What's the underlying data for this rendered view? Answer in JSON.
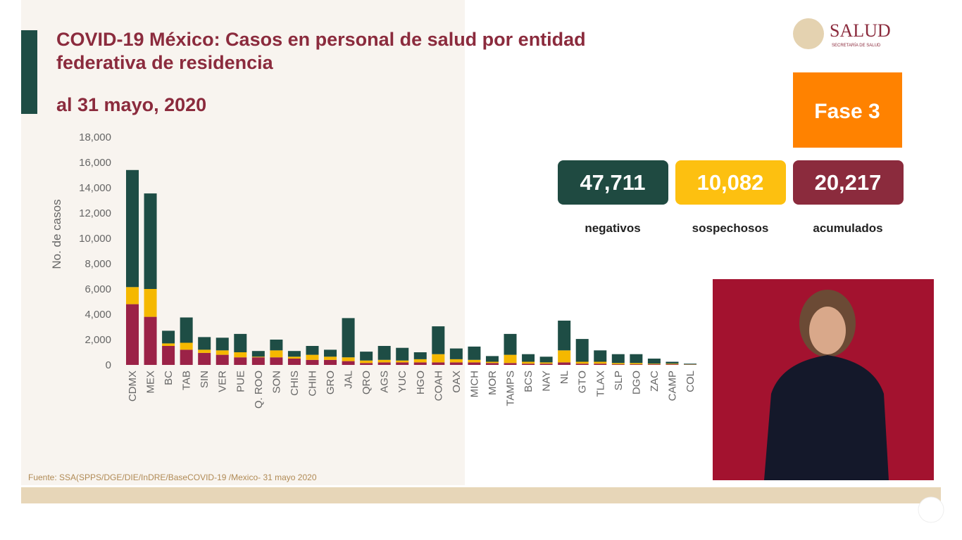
{
  "chart_data": {
    "type": "stacked-bar",
    "title": "COVID-19 México: Casos en personal de salud por entidad federativa de residencia",
    "subtitle": "al 31 mayo, 2020",
    "y_label": "No. de casos",
    "categories": [
      "CDMX",
      "MEX",
      "BC",
      "TAB",
      "SIN",
      "VER",
      "PUE",
      "Q. ROO",
      "SON",
      "CHIS",
      "CHIH",
      "GRO",
      "JAL",
      "QRO",
      "AGS",
      "YUC",
      "HGO",
      "COAH",
      "OAX",
      "MICH",
      "MOR",
      "TAMPS",
      "BCS",
      "NAY",
      "NL",
      "GTO",
      "TLAX",
      "SLP",
      "DGO",
      "ZAC",
      "CAMP",
      "COL"
    ],
    "series": [
      {
        "color": "#9b2247",
        "values": [
          4800,
          3800,
          1500,
          1200,
          950,
          800,
          600,
          600,
          600,
          500,
          400,
          400,
          300,
          150,
          200,
          200,
          200,
          200,
          200,
          200,
          150,
          150,
          100,
          100,
          200,
          100,
          100,
          50,
          50,
          50,
          50,
          20
        ]
      },
      {
        "color": "#f5b800",
        "values": [
          1350,
          2200,
          200,
          550,
          250,
          350,
          400,
          50,
          550,
          150,
          400,
          250,
          300,
          200,
          200,
          150,
          250,
          650,
          250,
          200,
          100,
          650,
          150,
          100,
          950,
          150,
          150,
          100,
          100,
          50,
          50,
          20
        ]
      },
      {
        "color": "#1e4d45",
        "values": [
          9250,
          7550,
          1000,
          2000,
          1000,
          1000,
          1450,
          450,
          850,
          450,
          700,
          550,
          3100,
          700,
          1100,
          1000,
          550,
          2200,
          850,
          1050,
          450,
          1650,
          600,
          450,
          2350,
          1800,
          900,
          700,
          700,
          400,
          150,
          60
        ]
      }
    ],
    "ylim": [
      0,
      18000
    ],
    "yticks": [
      0,
      {
        "value": 2000,
        "label": "2,000"
      },
      {
        "value": 4000,
        "label": "4,000"
      },
      {
        "value": 6000,
        "label": "6,000"
      },
      {
        "value": 8000,
        "label": "8,000"
      },
      {
        "value": 10000,
        "label": "10,000"
      },
      {
        "value": 12000,
        "label": "12,000"
      },
      {
        "value": 14000,
        "label": "14,000"
      },
      {
        "value": 16000,
        "label": "16,000"
      },
      {
        "value": 18000,
        "label": "18,000"
      }
    ],
    "source": "Fuente: SSA(SPPS/DGE/DIE/InDRE/BaseCOVID-19 /Mexico- 31 mayo 2020"
  },
  "brand": {
    "name": "SALUD",
    "subname": "SECRETARÍA DE SALUD"
  },
  "phase": "Fase 3",
  "summary": [
    {
      "value": "47,711",
      "label": "negativos",
      "color": "#1f4a41"
    },
    {
      "value": "10,082",
      "label": "sospechosos",
      "color": "#fdc010"
    },
    {
      "value": "20,217",
      "label": "acumulados",
      "color": "#8b2b3d"
    }
  ]
}
